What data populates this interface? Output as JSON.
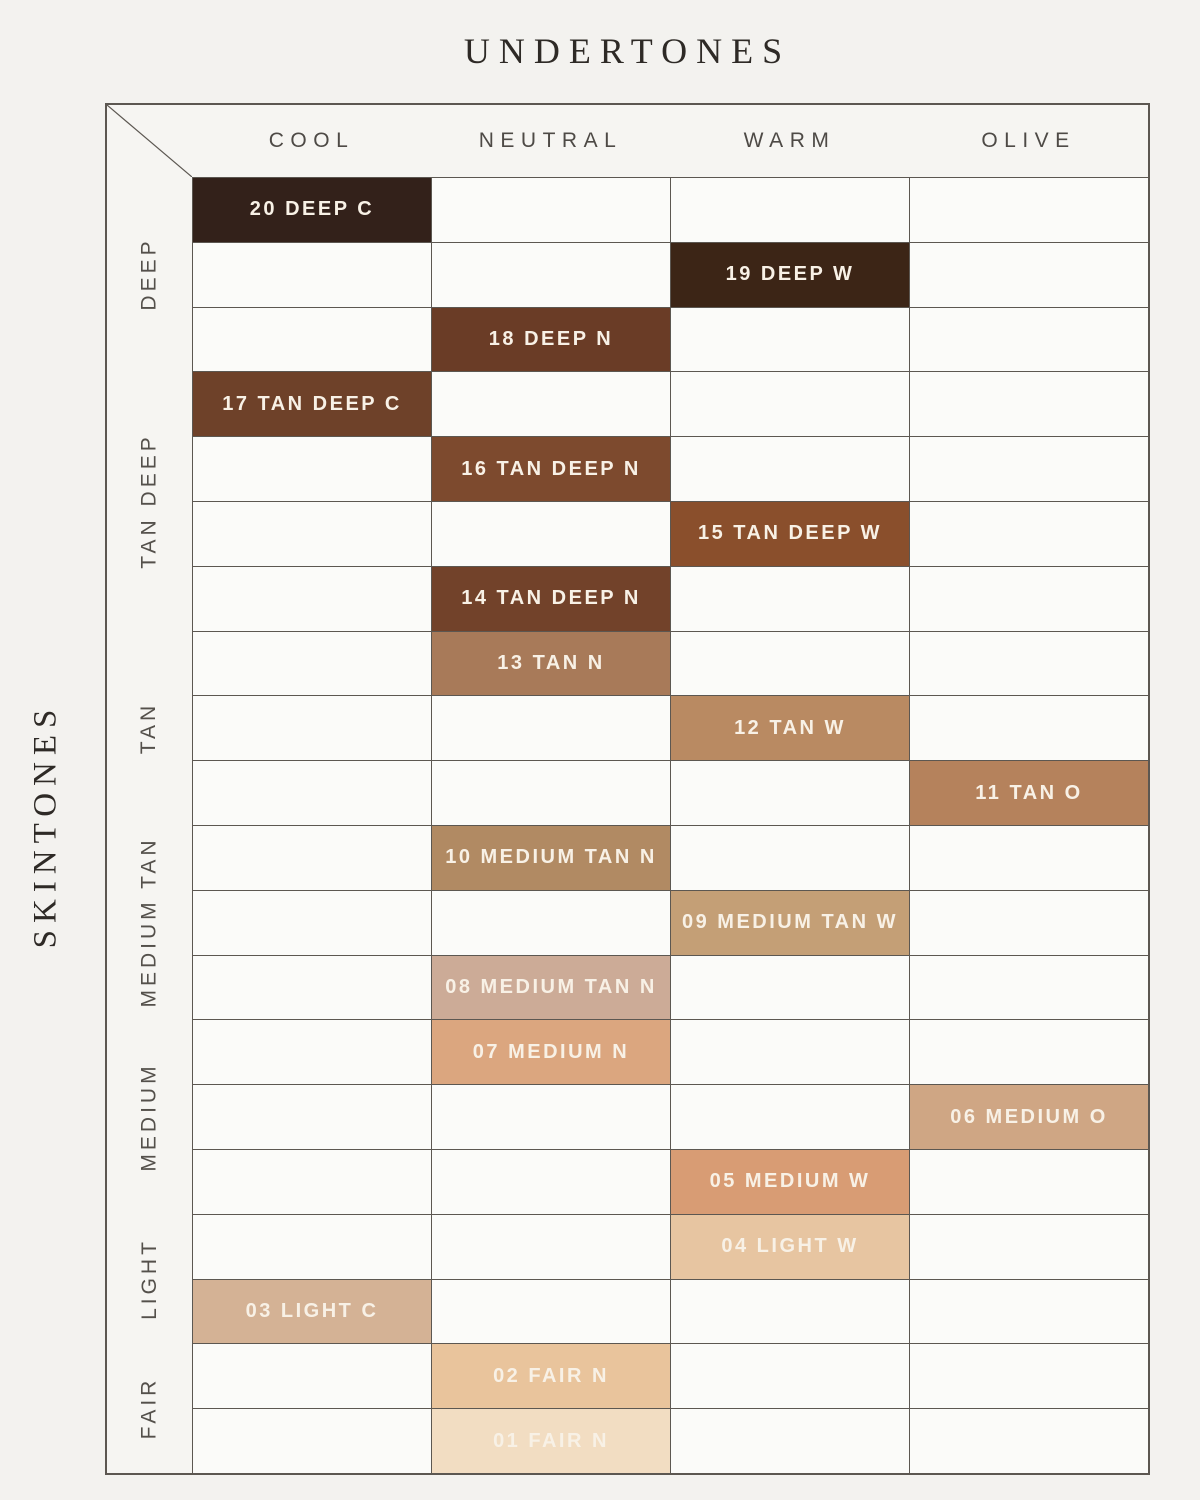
{
  "chart_data": {
    "type": "heatmap",
    "title": "UNDERTONES",
    "ylabel": "SKINTONES",
    "columns": [
      "COOL",
      "NEUTRAL",
      "WARM",
      "OLIVE"
    ],
    "groups": [
      {
        "label": "DEEP",
        "row_count": 3
      },
      {
        "label": "TAN DEEP",
        "row_count": 4
      },
      {
        "label": "TAN",
        "row_count": 3
      },
      {
        "label": "MEDIUM TAN",
        "row_count": 3
      },
      {
        "label": "MEDIUM",
        "row_count": 3
      },
      {
        "label": "LIGHT",
        "row_count": 2
      },
      {
        "label": "FAIR",
        "row_count": 2
      }
    ],
    "shades": [
      {
        "label": "20 DEEP C",
        "undertone": "COOL",
        "skintone": "DEEP",
        "col": 0,
        "color": "#33211a"
      },
      {
        "label": "19 DEEP W",
        "undertone": "WARM",
        "skintone": "DEEP",
        "col": 2,
        "color": "#3c2516"
      },
      {
        "label": "18 DEEP N",
        "undertone": "NEUTRAL",
        "skintone": "DEEP",
        "col": 1,
        "color": "#6a3c26"
      },
      {
        "label": "17 TAN DEEP C",
        "undertone": "COOL",
        "skintone": "TAN DEEP",
        "col": 0,
        "color": "#6e4129"
      },
      {
        "label": "16 TAN DEEP N",
        "undertone": "NEUTRAL",
        "skintone": "TAN DEEP",
        "col": 1,
        "color": "#7d4a2e"
      },
      {
        "label": "15 TAN DEEP W",
        "undertone": "WARM",
        "skintone": "TAN DEEP",
        "col": 2,
        "color": "#8a4f2c"
      },
      {
        "label": "14 TAN DEEP N",
        "undertone": "NEUTRAL",
        "skintone": "TAN DEEP",
        "col": 1,
        "color": "#72422a"
      },
      {
        "label": "13 TAN N",
        "undertone": "NEUTRAL",
        "skintone": "TAN",
        "col": 1,
        "color": "#a87a59"
      },
      {
        "label": "12 TAN W",
        "undertone": "WARM",
        "skintone": "TAN",
        "col": 2,
        "color": "#b98a62"
      },
      {
        "label": "11 TAN O",
        "undertone": "OLIVE",
        "skintone": "TAN",
        "col": 3,
        "color": "#b5825c"
      },
      {
        "label": "10 MEDIUM TAN N",
        "undertone": "NEUTRAL",
        "skintone": "MEDIUM TAN",
        "col": 1,
        "color": "#b18a63"
      },
      {
        "label": "09 MEDIUM TAN W",
        "undertone": "WARM",
        "skintone": "MEDIUM TAN",
        "col": 2,
        "color": "#c49f76"
      },
      {
        "label": "08 MEDIUM TAN N",
        "undertone": "NEUTRAL",
        "skintone": "MEDIUM TAN",
        "col": 1,
        "color": "#ccab97"
      },
      {
        "label": "07 MEDIUM N",
        "undertone": "NEUTRAL",
        "skintone": "MEDIUM",
        "col": 1,
        "color": "#dba67f"
      },
      {
        "label": "06 MEDIUM O",
        "undertone": "OLIVE",
        "skintone": "MEDIUM",
        "col": 3,
        "color": "#cfa684"
      },
      {
        "label": "05 MEDIUM W",
        "undertone": "WARM",
        "skintone": "MEDIUM",
        "col": 2,
        "color": "#d89c74"
      },
      {
        "label": "04 LIGHT W",
        "undertone": "WARM",
        "skintone": "LIGHT",
        "col": 2,
        "color": "#e7c5a1"
      },
      {
        "label": "03 LIGHT C",
        "undertone": "COOL",
        "skintone": "LIGHT",
        "col": 0,
        "color": "#d4b295"
      },
      {
        "label": "02 FAIR N",
        "undertone": "NEUTRAL",
        "skintone": "FAIR",
        "col": 1,
        "color": "#e9c49c"
      },
      {
        "label": "01 FAIR N",
        "undertone": "NEUTRAL",
        "skintone": "FAIR",
        "col": 1,
        "color": "#f2ddc2"
      }
    ],
    "layout": {
      "grid_on": true,
      "legend": "none",
      "rows": 20,
      "cols": 4
    }
  },
  "colors": {
    "page_bg": "#f3f2ef",
    "cell_bg": "#fbfbf9",
    "header_bg": "#f6f5f2",
    "grid_line": "#5c5751",
    "title_text": "#2e2a26",
    "axis_text": "#514c47",
    "shade_label_text": "#f8f1e6"
  }
}
